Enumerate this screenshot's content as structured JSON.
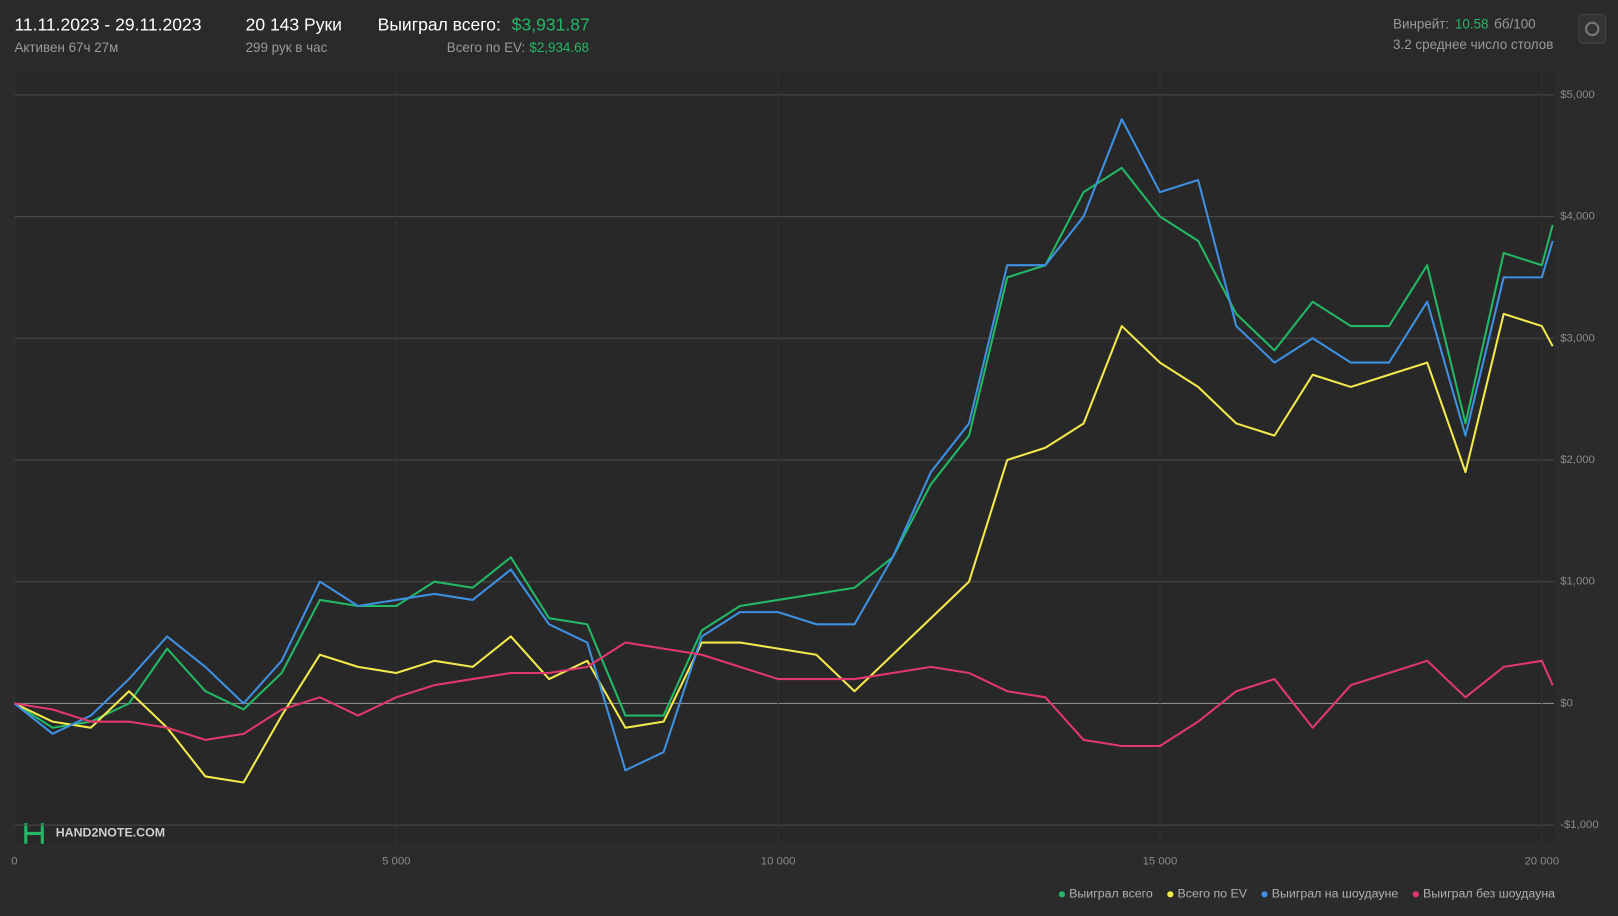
{
  "header": {
    "date_range": "11.11.2023 - 29.11.2023",
    "active": "Активен 67ч 27м",
    "hands": "20 143 Руки",
    "hands_per_hour": "299 рук в час",
    "won_label": "Выиграл всего:",
    "won_value": "$3,931.87",
    "ev_label": "Всего по EV:",
    "ev_value": "$2,934.68",
    "winrate_label": "Винрейт:",
    "winrate_value": "10.58",
    "winrate_unit": "бб/100",
    "tables": "3.2 среднее число столов",
    "watermark": "HAND2NOTE.COM"
  },
  "chart_data": {
    "type": "line",
    "x": [
      0,
      500,
      1000,
      1500,
      2000,
      2500,
      3000,
      3500,
      4000,
      4500,
      5000,
      5500,
      6000,
      6500,
      7000,
      7500,
      8000,
      8500,
      9000,
      9500,
      10000,
      10500,
      11000,
      11500,
      12000,
      12500,
      13000,
      13500,
      14000,
      14500,
      15000,
      15500,
      16000,
      16500,
      17000,
      17500,
      18000,
      18500,
      19000,
      19500,
      20000,
      20143
    ],
    "xlim": [
      0,
      20160
    ],
    "xticks": [
      0,
      {
        "value": 5000,
        "label": "5 000"
      },
      {
        "value": 10000,
        "label": "10 000"
      },
      {
        "value": 15000,
        "label": "15 000"
      },
      {
        "value": 20000,
        "label": "20 000"
      }
    ],
    "ylim": [
      -1153,
      5186
    ],
    "yticks": [
      {
        "value": -1000,
        "label": "-$1,000"
      },
      {
        "value": 0,
        "label": "$0"
      },
      {
        "value": 1000,
        "label": "$1,000"
      },
      {
        "value": 2000,
        "label": "$2,000"
      },
      {
        "value": 3000,
        "label": "$3,000"
      },
      {
        "value": 4000,
        "label": "$4,000"
      },
      {
        "value": 5000,
        "label": "$5,000"
      }
    ],
    "grid": true,
    "legend": "bottom-right",
    "series": [
      {
        "name": "Выиграл всего",
        "color": "#22b866",
        "values": [
          0,
          -200,
          -150,
          0,
          450,
          100,
          -50,
          250,
          850,
          800,
          800,
          1000,
          950,
          1200,
          700,
          650,
          -100,
          -100,
          600,
          800,
          850,
          900,
          950,
          1200,
          1800,
          2200,
          3500,
          3600,
          4200,
          4400,
          4000,
          3800,
          3200,
          2900,
          3300,
          3100,
          3100,
          3600,
          2300,
          3700,
          3600,
          3932
        ]
      },
      {
        "name": "Всего по EV",
        "color": "#f2ea4c",
        "values": [
          0,
          -150,
          -200,
          100,
          -200,
          -600,
          -650,
          -100,
          400,
          300,
          250,
          350,
          300,
          550,
          200,
          350,
          -200,
          -150,
          500,
          500,
          450,
          400,
          100,
          400,
          700,
          1000,
          2000,
          2100,
          2300,
          3100,
          2800,
          2600,
          2300,
          2200,
          2700,
          2600,
          2700,
          2800,
          1900,
          3200,
          3100,
          2935
        ]
      },
      {
        "name": "Выиграл на шоудауне",
        "color": "#3e90e2",
        "values": [
          0,
          -250,
          -100,
          200,
          550,
          300,
          0,
          350,
          1000,
          800,
          850,
          900,
          850,
          1100,
          650,
          500,
          -550,
          -400,
          550,
          750,
          750,
          650,
          650,
          1200,
          1900,
          2300,
          3600,
          3600,
          4000,
          4800,
          4200,
          4300,
          3100,
          2800,
          3000,
          2800,
          2800,
          3300,
          2200,
          3500,
          3500,
          3800
        ]
      },
      {
        "name": "Выиграл без шоудауна",
        "color": "#e2376f",
        "values": [
          0,
          -50,
          -150,
          -150,
          -200,
          -300,
          -250,
          -50,
          50,
          -100,
          50,
          150,
          200,
          250,
          250,
          300,
          500,
          450,
          400,
          300,
          200,
          200,
          200,
          250,
          300,
          250,
          100,
          50,
          -300,
          -350,
          -350,
          -150,
          100,
          200,
          -200,
          150,
          250,
          350,
          50,
          300,
          350,
          150
        ]
      }
    ]
  }
}
